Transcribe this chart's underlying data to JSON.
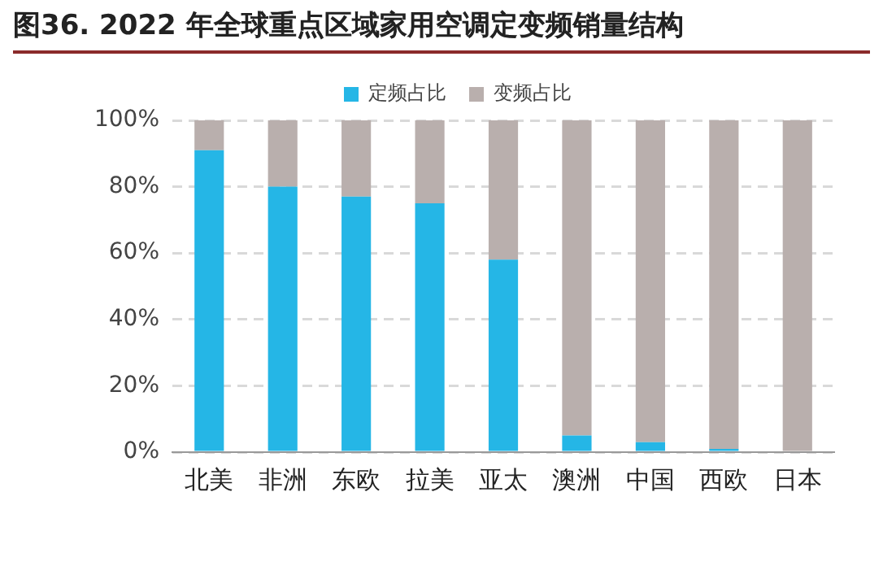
{
  "chart_data": {
    "type": "bar",
    "title": "图36. 2022 年全球重点区域家用空调定变频销量结构",
    "stacked": true,
    "categories": [
      "北美",
      "非洲",
      "东欧",
      "拉美",
      "亚太",
      "澳洲",
      "中国",
      "西欧",
      "日本"
    ],
    "series": [
      {
        "name": "定频占比",
        "color": "#25b6e6",
        "values": [
          91,
          80,
          77,
          75,
          58,
          5,
          3,
          1,
          0
        ]
      },
      {
        "name": "变频占比",
        "color": "#b9afad",
        "values": [
          9,
          20,
          23,
          25,
          42,
          95,
          97,
          99,
          100
        ]
      }
    ],
    "ylim": [
      0,
      100
    ],
    "yticks": [
      {
        "value": 0,
        "label": "0%"
      },
      {
        "value": 20,
        "label": "20%"
      },
      {
        "value": 40,
        "label": "40%"
      },
      {
        "value": 60,
        "label": "60%"
      },
      {
        "value": 80,
        "label": "80%"
      },
      {
        "value": 100,
        "label": "100%"
      }
    ],
    "grid": "y",
    "legend": "top"
  }
}
